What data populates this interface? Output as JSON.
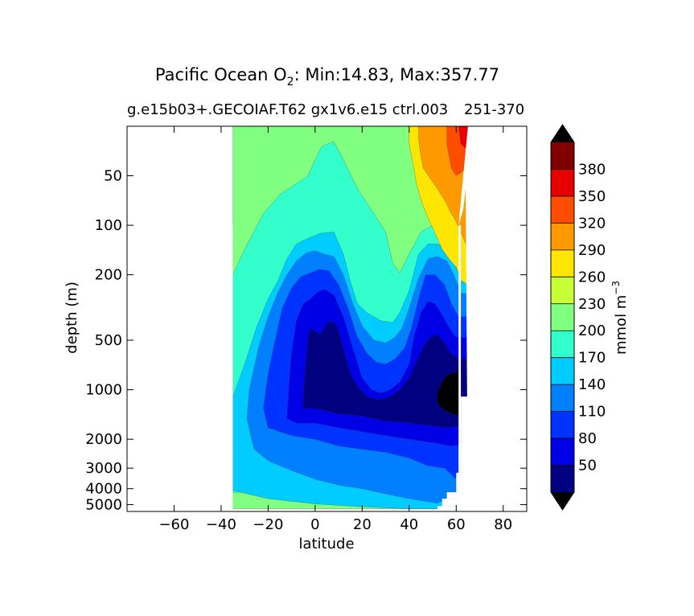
{
  "chart_data": {
    "type": "heatmap",
    "title": {
      "prefix": "Pacific Ocean O",
      "subscript": "2",
      "suffix": ": Min:14.83, Max:357.77"
    },
    "subtitle_left": "g.e15b03+.GECOIAF.T62 gx1v6.e15 ctrl.003",
    "subtitle_right": "251-370",
    "xlabel": "latitude",
    "ylabel": "depth (m)",
    "xlim": [
      -80,
      90
    ],
    "x_ticks": [
      -60,
      -40,
      -20,
      0,
      20,
      40,
      60,
      80
    ],
    "x_tick_labels": [
      "−60",
      "−40",
      "−20",
      "0",
      "20",
      "40",
      "60",
      "80"
    ],
    "y_scale": "log",
    "ylim": [
      5500,
      25
    ],
    "y_ticks": [
      50,
      100,
      200,
      500,
      1000,
      2000,
      3000,
      4000,
      5000
    ],
    "y_tick_labels": [
      "50",
      "100",
      "200",
      "500",
      "1000",
      "2000",
      "3000",
      "4000",
      "5000"
    ],
    "colorbar": {
      "label_main": "mmol m",
      "label_exp": "−3",
      "extend": "both",
      "levels": [
        20,
        50,
        80,
        110,
        140,
        170,
        200,
        230,
        260,
        290,
        320,
        350,
        380,
        410
      ],
      "colors": [
        "#000080",
        "#0000e6",
        "#0033ff",
        "#0080ff",
        "#00ccff",
        "#33ffcc",
        "#80ff80",
        "#c6ff33",
        "#ffe600",
        "#ff9900",
        "#ff4d00",
        "#e60000",
        "#800000"
      ],
      "under_color": "#000000",
      "over_color": "#000000",
      "tick_values": [
        50,
        80,
        110,
        140,
        170,
        200,
        230,
        260,
        290,
        320,
        350,
        380
      ],
      "tick_labels": [
        "50",
        "80",
        "110",
        "140",
        "170",
        "200",
        "230",
        "260",
        "290",
        "320",
        "350",
        "380"
      ]
    },
    "layers": [
      {
        "name": "b200",
        "color": "#80ff80",
        "profile": [
          [
            -35,
            25
          ],
          [
            65,
            25
          ],
          [
            65,
            5300
          ],
          [
            -35,
            5300
          ]
        ]
      },
      {
        "name": "b230",
        "color": "#c6ff33",
        "profile": [
          [
            -35,
            25
          ],
          [
            -35,
            100
          ]
        ]
      },
      {
        "name": "b170",
        "color": "#33ffcc",
        "profile": [
          [
            -35,
            200
          ],
          [
            -30,
            140
          ],
          [
            -22,
            85
          ],
          [
            -15,
            65
          ],
          [
            -8,
            56
          ],
          [
            -3,
            50
          ],
          [
            0,
            40
          ],
          [
            3,
            33
          ],
          [
            8,
            31
          ],
          [
            12,
            40
          ],
          [
            18,
            60
          ],
          [
            25,
            85
          ],
          [
            30,
            110
          ],
          [
            33,
            170
          ],
          [
            36,
            195
          ],
          [
            40,
            150
          ],
          [
            45,
            110
          ],
          [
            50,
            100
          ],
          [
            55,
            105
          ],
          [
            58,
            120
          ],
          [
            60,
            160
          ],
          [
            62,
            200
          ],
          [
            65,
            200
          ],
          [
            65,
            4200
          ],
          [
            -35,
            4200
          ]
        ]
      },
      {
        "name": "b140",
        "color": "#00ccff",
        "profile": [
          [
            -35,
            1100
          ],
          [
            -30,
            700
          ],
          [
            -25,
            420
          ],
          [
            -20,
            280
          ],
          [
            -16,
            220
          ],
          [
            -12,
            160
          ],
          [
            -8,
            130
          ],
          [
            -3,
            120
          ],
          [
            2,
            112
          ],
          [
            8,
            110
          ],
          [
            12,
            150
          ],
          [
            15,
            220
          ],
          [
            18,
            300
          ],
          [
            22,
            340
          ],
          [
            28,
            380
          ],
          [
            33,
            390
          ],
          [
            36,
            340
          ],
          [
            40,
            250
          ],
          [
            44,
            150
          ],
          [
            48,
            130
          ],
          [
            52,
            130
          ],
          [
            55,
            135
          ],
          [
            58,
            150
          ],
          [
            62,
            220
          ],
          [
            65,
            220
          ],
          [
            65,
            5300
          ],
          [
            52,
            5300
          ],
          [
            48,
            5300
          ],
          [
            40,
            5300
          ],
          [
            20,
            5150
          ],
          [
            0,
            4950
          ],
          [
            -20,
            4600
          ],
          [
            -35,
            4100
          ]
        ]
      },
      {
        "name": "b110",
        "color": "#0080ff",
        "profile": [
          [
            -29,
            1500
          ],
          [
            -28,
            1000
          ],
          [
            -24,
            550
          ],
          [
            -20,
            360
          ],
          [
            -16,
            260
          ],
          [
            -12,
            200
          ],
          [
            -8,
            165
          ],
          [
            -4,
            148
          ],
          [
            0,
            143
          ],
          [
            4,
            150
          ],
          [
            8,
            155
          ],
          [
            12,
            200
          ],
          [
            16,
            300
          ],
          [
            20,
            410
          ],
          [
            25,
            500
          ],
          [
            30,
            520
          ],
          [
            34,
            480
          ],
          [
            37,
            420
          ],
          [
            40,
            320
          ],
          [
            44,
            210
          ],
          [
            48,
            160
          ],
          [
            52,
            155
          ],
          [
            56,
            165
          ],
          [
            59,
            200
          ],
          [
            62,
            260
          ],
          [
            65,
            260
          ],
          [
            65,
            4300
          ],
          [
            58,
            4500
          ],
          [
            52,
            4900
          ],
          [
            40,
            4600
          ],
          [
            30,
            4300
          ],
          [
            20,
            4000
          ],
          [
            10,
            3800
          ],
          [
            0,
            3500
          ],
          [
            -10,
            3100
          ],
          [
            -20,
            2700
          ],
          [
            -26,
            2300
          ]
        ]
      },
      {
        "name": "b80",
        "color": "#0033ff",
        "profile": [
          [
            -22,
            1300
          ],
          [
            -20,
            800
          ],
          [
            -17,
            500
          ],
          [
            -14,
            320
          ],
          [
            -10,
            240
          ],
          [
            -6,
            205
          ],
          [
            -2,
            195
          ],
          [
            2,
            185
          ],
          [
            6,
            190
          ],
          [
            10,
            230
          ],
          [
            14,
            320
          ],
          [
            18,
            480
          ],
          [
            22,
            600
          ],
          [
            26,
            680
          ],
          [
            30,
            700
          ],
          [
            34,
            650
          ],
          [
            38,
            560
          ],
          [
            41,
            420
          ],
          [
            44,
            280
          ],
          [
            47,
            200
          ],
          [
            51,
            200
          ],
          [
            55,
            230
          ],
          [
            58,
            300
          ],
          [
            61,
            360
          ],
          [
            65,
            360
          ],
          [
            65,
            3300
          ],
          [
            60,
            3500
          ],
          [
            55,
            3000
          ],
          [
            48,
            2900
          ],
          [
            40,
            2600
          ],
          [
            30,
            2400
          ],
          [
            20,
            2300
          ],
          [
            10,
            2200
          ],
          [
            0,
            2000
          ],
          [
            -10,
            1900
          ],
          [
            -20,
            1700
          ]
        ]
      },
      {
        "name": "b50",
        "color": "#0000e6",
        "profile": [
          [
            -12,
            1500
          ],
          [
            -11,
            900
          ],
          [
            -10,
            600
          ],
          [
            -8,
            380
          ],
          [
            -5,
            300
          ],
          [
            -2,
            280
          ],
          [
            1,
            255
          ],
          [
            4,
            245
          ],
          [
            8,
            265
          ],
          [
            12,
            360
          ],
          [
            16,
            560
          ],
          [
            20,
            850
          ],
          [
            24,
            1000
          ],
          [
            28,
            1050
          ],
          [
            32,
            1000
          ],
          [
            36,
            900
          ],
          [
            40,
            700
          ],
          [
            42,
            480
          ],
          [
            45,
            340
          ],
          [
            48,
            290
          ],
          [
            51,
            300
          ],
          [
            54,
            350
          ],
          [
            57,
            420
          ],
          [
            60,
            480
          ],
          [
            65,
            480
          ],
          [
            65,
            2100
          ],
          [
            58,
            2200
          ],
          [
            50,
            2100
          ],
          [
            40,
            2000
          ],
          [
            30,
            1900
          ],
          [
            20,
            1800
          ],
          [
            10,
            1700
          ],
          [
            0,
            1600
          ],
          [
            -8,
            1600
          ]
        ]
      },
      {
        "name": "b20",
        "color": "#000080",
        "profile": [
          [
            -5,
            1100
          ],
          [
            -4,
            700
          ],
          [
            -3,
            480
          ],
          [
            -2,
            420
          ],
          [
            0,
            440
          ],
          [
            2,
            460
          ],
          [
            4,
            420
          ],
          [
            6,
            380
          ],
          [
            9,
            400
          ],
          [
            12,
            560
          ],
          [
            15,
            800
          ],
          [
            18,
            950
          ],
          [
            22,
            1100
          ],
          [
            27,
            1150
          ],
          [
            32,
            1100
          ],
          [
            36,
            1000
          ],
          [
            40,
            850
          ],
          [
            43,
            680
          ],
          [
            46,
            550
          ],
          [
            49,
            480
          ],
          [
            52,
            460
          ],
          [
            55,
            520
          ],
          [
            58,
            600
          ],
          [
            61,
            650
          ],
          [
            65,
            650
          ],
          [
            65,
            1600
          ],
          [
            58,
            1700
          ],
          [
            48,
            1650
          ],
          [
            40,
            1600
          ],
          [
            30,
            1550
          ],
          [
            20,
            1450
          ],
          [
            10,
            1400
          ],
          [
            0,
            1300
          ],
          [
            -5,
            1300
          ]
        ]
      },
      {
        "name": "b_under",
        "color": "#000000",
        "profile": [
          [
            52,
            1050
          ],
          [
            54,
            900
          ],
          [
            56,
            820
          ],
          [
            58,
            800
          ],
          [
            60,
            780
          ],
          [
            62,
            800
          ],
          [
            62,
            1450
          ],
          [
            58,
            1400
          ],
          [
            54,
            1300
          ],
          [
            52,
            1200
          ]
        ]
      },
      {
        "name": "b260",
        "color": "#ffe600",
        "profile": [
          [
            40,
            25
          ],
          [
            65,
            25
          ],
          [
            65,
            230
          ],
          [
            62,
            215
          ],
          [
            60,
            180
          ],
          [
            57,
            160
          ],
          [
            54,
            140
          ],
          [
            52,
            120
          ],
          [
            48,
            90
          ],
          [
            45,
            70
          ],
          [
            43,
            55
          ],
          [
            42,
            45
          ],
          [
            41,
            38
          ],
          [
            40,
            32
          ]
        ]
      },
      {
        "name": "b290",
        "color": "#ff9900",
        "profile": [
          [
            44,
            25
          ],
          [
            65,
            25
          ],
          [
            65,
            140
          ],
          [
            62,
            110
          ],
          [
            60,
            95
          ],
          [
            58,
            85
          ],
          [
            55,
            70
          ],
          [
            52,
            60
          ],
          [
            49,
            52
          ],
          [
            46,
            45
          ],
          [
            45,
            38
          ],
          [
            44,
            30
          ]
        ]
      },
      {
        "name": "b320",
        "color": "#ff4d00",
        "profile": [
          [
            56,
            25
          ],
          [
            67,
            25
          ],
          [
            67,
            40
          ],
          [
            64,
            45
          ],
          [
            62,
            48
          ],
          [
            60,
            50
          ],
          [
            58,
            45
          ],
          [
            57,
            38
          ],
          [
            56,
            32
          ]
        ]
      },
      {
        "name": "b350",
        "color": "#e60000",
        "profile": [
          [
            61,
            25
          ],
          [
            67,
            25
          ],
          [
            67,
            32
          ],
          [
            64,
            34
          ],
          [
            62,
            32
          ]
        ]
      }
    ],
    "land": [
      [
        [
          65,
          25
        ],
        [
          90,
          25
        ],
        [
          90,
          5500
        ],
        [
          65,
          5500
        ],
        [
          64,
          60
        ],
        [
          63,
          80
        ],
        [
          62,
          90
        ],
        [
          61,
          100
        ]
      ],
      [
        [
          61,
          100
        ],
        [
          62,
          100
        ],
        [
          62,
          5500
        ],
        [
          61,
          5500
        ]
      ],
      [
        [
          -80,
          25
        ],
        [
          -35,
          25
        ],
        [
          -35,
          5500
        ],
        [
          -80,
          5500
        ]
      ],
      [
        [
          62,
          1100
        ],
        [
          65,
          1100
        ],
        [
          65,
          5500
        ],
        [
          62,
          5500
        ]
      ],
      [
        [
          52,
          5100
        ],
        [
          65,
          5100
        ],
        [
          65,
          5500
        ],
        [
          52,
          5500
        ]
      ],
      [
        [
          54,
          4600
        ],
        [
          65,
          4600
        ],
        [
          65,
          5100
        ],
        [
          54,
          5100
        ]
      ],
      [
        [
          56,
          4200
        ],
        [
          65,
          4200
        ],
        [
          65,
          4600
        ],
        [
          56,
          4600
        ]
      ],
      [
        [
          60,
          3200
        ],
        [
          65,
          3200
        ],
        [
          65,
          4200
        ],
        [
          60,
          4200
        ]
      ]
    ]
  }
}
